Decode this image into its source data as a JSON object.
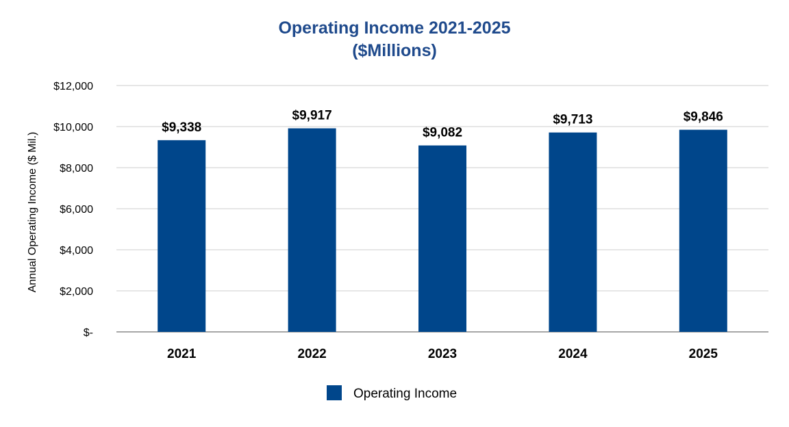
{
  "chart_data": {
    "type": "bar",
    "title_lines": [
      "Operating Income 2021-2025",
      "($Millions)"
    ],
    "xlabel": "",
    "ylabel": "Annual Operating Income ($ Mil.)",
    "categories": [
      "2021",
      "2022",
      "2023",
      "2024",
      "2025"
    ],
    "series": [
      {
        "name": "Operating Income",
        "values": [
          9338,
          9917,
          9082,
          9713,
          9846
        ],
        "data_labels": [
          "$9,338",
          "$9,917",
          "$9,082",
          "$9,713",
          "$9,846"
        ]
      }
    ],
    "ylim": [
      0,
      12000
    ],
    "yticks": [
      0,
      2000,
      4000,
      6000,
      8000,
      10000,
      12000
    ],
    "ytick_labels": [
      "$-",
      "$2,000",
      "$4,000",
      "$6,000",
      "$8,000",
      "$10,000",
      "$12,000"
    ],
    "grid": true,
    "legend": "bottom-center",
    "colors": {
      "bar": "#00468b",
      "title": "#1f4a8c",
      "grid": "#e6e6e6",
      "axis": "#a6a6a6",
      "text": "#000000"
    }
  }
}
